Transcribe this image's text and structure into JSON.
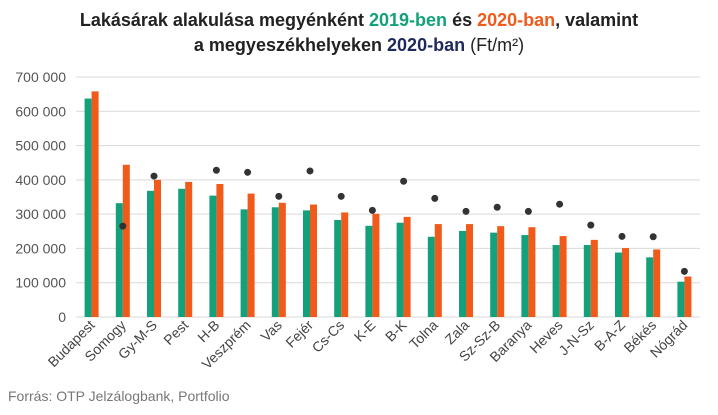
{
  "title": {
    "line1_prefix": "Lakásárak alakulása megyénként ",
    "year_2019": "2019-ben",
    "line1_mid": " és ",
    "year_2020": "2020-ban",
    "line1_suffix": ", valamint",
    "line2_prefix": "a megyeszékhelyeken ",
    "line2_year": "2020-ban",
    "line2_unit": "(Ft/m²)"
  },
  "source": "Forrás: OTP Jelzálogbank, Portfolio",
  "colors": {
    "green": "#12a17a",
    "orange": "#f05a1a",
    "navy": "#1f2a5c",
    "dot": "#333333",
    "grid": "#d9d9d9"
  },
  "chart_data": {
    "type": "bar",
    "ylim": [
      0,
      700000
    ],
    "yticks": [
      "0",
      "100 000",
      "200 000",
      "300 000",
      "400 000",
      "500 000",
      "600 000",
      "700 000"
    ],
    "grid": true,
    "categories": [
      "Budapest",
      "Somogy",
      "Gy-M-S",
      "Pest",
      "H-B",
      "Veszprém",
      "Vas",
      "Fejér",
      "Cs-Cs",
      "K-E",
      "B-K",
      "Tolna",
      "Zala",
      "Sz-Sz-B",
      "Baranya",
      "Heves",
      "J-N-Sz",
      "B-A-Z",
      "Békés",
      "Nógrád"
    ],
    "series": [
      {
        "type": "bar",
        "color": "#12a17a",
        "values": [
          637000,
          332000,
          368000,
          374000,
          354000,
          314000,
          320000,
          311000,
          283000,
          266000,
          275000,
          234000,
          251000,
          246000,
          239000,
          210000,
          210000,
          188000,
          174000,
          103000
        ]
      },
      {
        "type": "bar",
        "color": "#f05a1a",
        "values": [
          658000,
          444000,
          400000,
          394000,
          388000,
          360000,
          333000,
          328000,
          305000,
          301000,
          292000,
          271000,
          271000,
          265000,
          262000,
          236000,
          225000,
          201000,
          197000,
          118000
        ]
      },
      {
        "type": "scatter",
        "color": "#333333",
        "values": [
          null,
          265000,
          411000,
          null,
          428000,
          422000,
          352000,
          426000,
          352000,
          311000,
          396000,
          346000,
          308000,
          320000,
          308000,
          329000,
          268000,
          235000,
          234000,
          133000
        ]
      }
    ]
  }
}
